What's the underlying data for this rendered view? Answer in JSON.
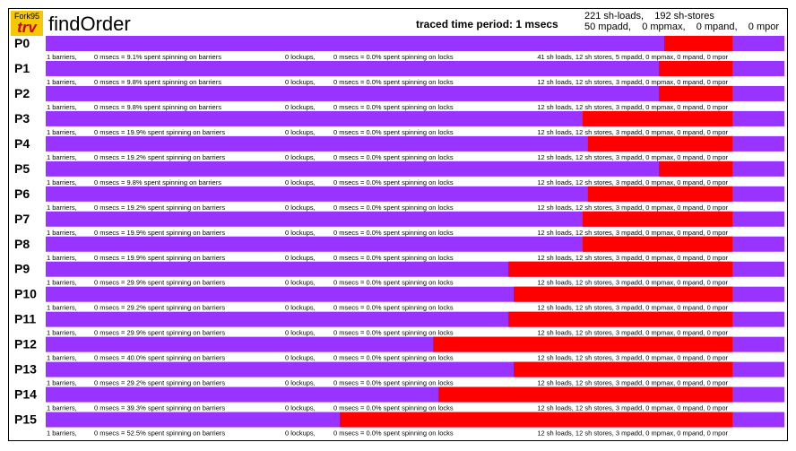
{
  "header": {
    "logo_top": "Fork95",
    "logo_bottom": "trv",
    "title": "findOrder",
    "period": "traced time period: 1 msecs",
    "totals_line1": "221 sh-loads,    192 sh-stores",
    "totals_line2": "50 mpadd,    0 mpmax,    0 mpand,    0 mpor"
  },
  "colors": {
    "work": "#9933ff",
    "barrier": "#ff0000",
    "background": "#ffffff"
  },
  "chart_data": {
    "type": "timeline",
    "time_range_msecs": [
      0,
      1
    ],
    "processors": [
      {
        "label": "P0",
        "barrier_start": 0.8373,
        "barrier_end": 0.9299,
        "stats": {
          "barriers": "1 barriers,",
          "barrier_time": "0 msecs = 9.1% spent spinning on barriers",
          "lockups": "0 lockups,",
          "lock_time": "0 msecs = 0.0% spent spinning on locks",
          "shared": "41 sh loads, 12 sh stores, 5 mpadd, 0 mpmax, 0 mpand, 0 mpor"
        }
      },
      {
        "label": "P1",
        "barrier_start": 0.8302,
        "barrier_end": 0.9299,
        "stats": {
          "barriers": "1 barriers,",
          "barrier_time": "0 msecs = 9.8% spent spinning on barriers",
          "lockups": "0 lockups,",
          "lock_time": "0 msecs = 0.0% spent spinning on locks",
          "shared": "12 sh loads, 12 sh stores, 3 mpadd, 0 mpmax, 0 mpand, 0 mpor"
        }
      },
      {
        "label": "P2",
        "barrier_start": 0.8302,
        "barrier_end": 0.9299,
        "stats": {
          "barriers": "1 barriers,",
          "barrier_time": "0 msecs = 9.8% spent spinning on barriers",
          "lockups": "0 lockups,",
          "lock_time": "0 msecs = 0.0% spent spinning on locks",
          "shared": "12 sh loads, 12 sh stores, 3 mpadd, 0 mpmax, 0 mpand, 0 mpor"
        }
      },
      {
        "label": "P3",
        "barrier_start": 0.7269,
        "barrier_end": 0.9299,
        "stats": {
          "barriers": "1 barriers,",
          "barrier_time": "0 msecs = 19.9% spent spinning on barriers",
          "lockups": "0 lockups,",
          "lock_time": "0 msecs = 0.0% spent spinning on locks",
          "shared": "12 sh loads, 12 sh stores, 3 mpadd, 0 mpmax, 0 mpand, 0 mpor"
        }
      },
      {
        "label": "P4",
        "barrier_start": 0.734,
        "barrier_end": 0.9299,
        "stats": {
          "barriers": "1 barriers,",
          "barrier_time": "0 msecs = 19.2% spent spinning on barriers",
          "lockups": "0 lockups,",
          "lock_time": "0 msecs = 0.0% spent spinning on locks",
          "shared": "12 sh loads, 12 sh stores, 3 mpadd, 0 mpmax, 0 mpand, 0 mpor"
        }
      },
      {
        "label": "P5",
        "barrier_start": 0.8302,
        "barrier_end": 0.9299,
        "stats": {
          "barriers": "1 barriers,",
          "barrier_time": "0 msecs = 9.8% spent spinning on barriers",
          "lockups": "0 lockups,",
          "lock_time": "0 msecs = 0.0% spent spinning on locks",
          "shared": "12 sh loads, 12 sh stores, 3 mpadd, 0 mpmax, 0 mpand, 0 mpor"
        }
      },
      {
        "label": "P6",
        "barrier_start": 0.734,
        "barrier_end": 0.9299,
        "stats": {
          "barriers": "1 barriers,",
          "barrier_time": "0 msecs = 19.2% spent spinning on barriers",
          "lockups": "0 lockups,",
          "lock_time": "0 msecs = 0.0% spent spinning on locks",
          "shared": "12 sh loads, 12 sh stores, 3 mpadd, 0 mpmax, 0 mpand, 0 mpor"
        }
      },
      {
        "label": "P7",
        "barrier_start": 0.7269,
        "barrier_end": 0.9299,
        "stats": {
          "barriers": "1 barriers,",
          "barrier_time": "0 msecs = 19.9% spent spinning on barriers",
          "lockups": "0 lockups,",
          "lock_time": "0 msecs = 0.0% spent spinning on locks",
          "shared": "12 sh loads, 12 sh stores, 3 mpadd, 0 mpmax, 0 mpand, 0 mpor"
        }
      },
      {
        "label": "P8",
        "barrier_start": 0.7269,
        "barrier_end": 0.9299,
        "stats": {
          "barriers": "1 barriers,",
          "barrier_time": "0 msecs = 19.9% spent spinning on barriers",
          "lockups": "0 lockups,",
          "lock_time": "0 msecs = 0.0% spent spinning on locks",
          "shared": "12 sh loads, 12 sh stores, 3 mpadd, 0 mpmax, 0 mpand, 0 mpor"
        }
      },
      {
        "label": "P9",
        "barrier_start": 0.6264,
        "barrier_end": 0.9299,
        "stats": {
          "barriers": "1 barriers,",
          "barrier_time": "0 msecs = 29.9% spent spinning on barriers",
          "lockups": "0 lockups,",
          "lock_time": "0 msecs = 0.0% spent spinning on locks",
          "shared": "12 sh loads, 12 sh stores, 3 mpadd, 0 mpmax, 0 mpand, 0 mpor"
        }
      },
      {
        "label": "P10",
        "barrier_start": 0.6335,
        "barrier_end": 0.9299,
        "stats": {
          "barriers": "1 barriers,",
          "barrier_time": "0 msecs = 29.2% spent spinning on barriers",
          "lockups": "0 lockups,",
          "lock_time": "0 msecs = 0.0% spent spinning on locks",
          "shared": "12 sh loads, 12 sh stores, 3 mpadd, 0 mpmax, 0 mpand, 0 mpor"
        }
      },
      {
        "label": "P11",
        "barrier_start": 0.6264,
        "barrier_end": 0.9299,
        "stats": {
          "barriers": "1 barriers,",
          "barrier_time": "0 msecs = 29.9% spent spinning on barriers",
          "lockups": "0 lockups,",
          "lock_time": "0 msecs = 0.0% spent spinning on locks",
          "shared": "12 sh loads, 12 sh stores, 3 mpadd, 0 mpmax, 0 mpand, 0 mpor"
        }
      },
      {
        "label": "P12",
        "barrier_start": 0.5245,
        "barrier_end": 0.9299,
        "stats": {
          "barriers": "1 barriers,",
          "barrier_time": "0 msecs = 40.0% spent spinning on barriers",
          "lockups": "0 lockups,",
          "lock_time": "0 msecs = 0.0% spent spinning on locks",
          "shared": "12 sh loads, 12 sh stores, 3 mpadd, 0 mpmax, 0 mpand, 0 mpor"
        }
      },
      {
        "label": "P13",
        "barrier_start": 0.6335,
        "barrier_end": 0.9299,
        "stats": {
          "barriers": "1 barriers,",
          "barrier_time": "0 msecs = 29.2% spent spinning on barriers",
          "lockups": "0 lockups,",
          "lock_time": "0 msecs = 0.0% spent spinning on locks",
          "shared": "12 sh loads, 12 sh stores, 3 mpadd, 0 mpmax, 0 mpand, 0 mpor"
        }
      },
      {
        "label": "P14",
        "barrier_start": 0.5317,
        "barrier_end": 0.9299,
        "stats": {
          "barriers": "1 barriers,",
          "barrier_time": "0 msecs = 39.3% spent spinning on barriers",
          "lockups": "0 lockups,",
          "lock_time": "0 msecs = 0.0% spent spinning on locks",
          "shared": "12 sh loads, 12 sh stores, 3 mpadd, 0 mpmax, 0 mpand, 0 mpor"
        }
      },
      {
        "label": "P15",
        "barrier_start": 0.3981,
        "barrier_end": 0.9299,
        "stats": {
          "barriers": "1 barriers,",
          "barrier_time": "0 msecs = 52.5% spent spinning on barriers",
          "lockups": "0 lockups,",
          "lock_time": "0 msecs = 0.0% spent spinning on locks",
          "shared": "12 sh loads, 12 sh stores, 3 mpadd, 0 mpmax, 0 mpand, 0 mpor"
        }
      }
    ]
  }
}
